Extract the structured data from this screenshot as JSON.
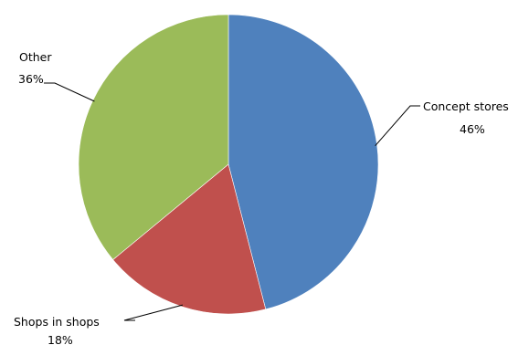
{
  "chart_data": {
    "type": "pie",
    "title": "",
    "legend": "none",
    "slices": [
      {
        "label": "Concept stores",
        "value": 46,
        "value_label": "46%",
        "color": "#4F81BD"
      },
      {
        "label": "Shops in shops",
        "value": 18,
        "value_label": "18%",
        "color": "#C0504D"
      },
      {
        "label": "Other",
        "value": 36,
        "value_label": "36%",
        "color": "#9BBB59"
      }
    ]
  }
}
